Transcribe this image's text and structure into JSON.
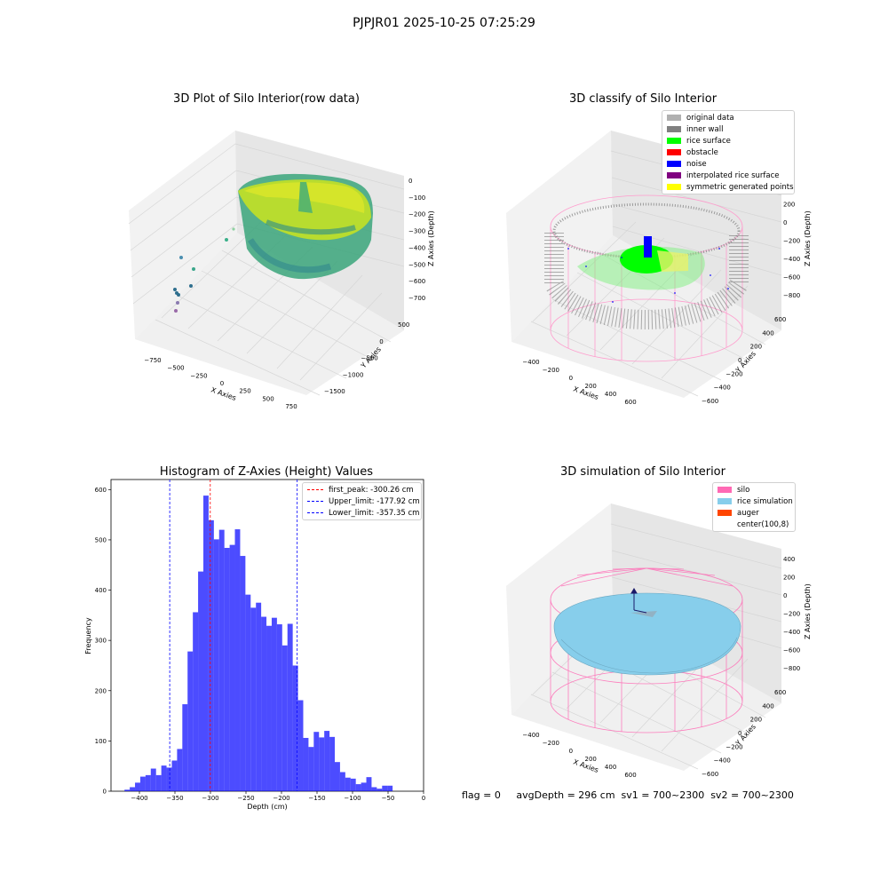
{
  "suptitle": "PJPJR01 2025-10-25 07:25:29",
  "panel1": {
    "title": "3D Plot of Silo Interior(row data)",
    "xlabel": "X Axies",
    "ylabel": "Y Axies",
    "zlabel": "Z Axies (Depth)",
    "xticks": [
      "−750",
      "−500",
      "−250",
      "0",
      "250",
      "500",
      "750"
    ],
    "yticks": [
      "500",
      "0",
      "−500",
      "−1000",
      "−1500"
    ],
    "zticks": [
      "0",
      "−100",
      "−200",
      "−300",
      "−400",
      "−500",
      "−600",
      "−700"
    ]
  },
  "panel2": {
    "title": "3D classify of Silo Interior",
    "xlabel": "X Axies",
    "ylabel": "Y Axies",
    "zlabel": "Z Axies (Depth)",
    "xticks": [
      "−400",
      "−200",
      "0",
      "200",
      "400",
      "600"
    ],
    "yticks": [
      "600",
      "400",
      "200",
      "0",
      "−200",
      "−400",
      "−600"
    ],
    "zticks": [
      "400",
      "200",
      "0",
      "−200",
      "−400",
      "−600",
      "−800"
    ],
    "legend": [
      {
        "label": "original data",
        "color": "#b0b0b0"
      },
      {
        "label": "inner wall",
        "color": "#808080"
      },
      {
        "label": "rice surface",
        "color": "#00ff00"
      },
      {
        "label": "obstacle",
        "color": "#ff0000"
      },
      {
        "label": "noise",
        "color": "#0000ff"
      },
      {
        "label": "interpolated rice surface",
        "color": "#800080"
      },
      {
        "label": "symmetric generated points",
        "color": "#ffff00"
      }
    ]
  },
  "panel4": {
    "title": "3D simulation of Silo Interior",
    "xlabel": "X Axies",
    "ylabel": "Y Axies",
    "zlabel": "Z Axies (Depth)",
    "xticks": [
      "−400",
      "−200",
      "0",
      "200",
      "400",
      "600"
    ],
    "yticks": [
      "600",
      "400",
      "200",
      "0",
      "−200",
      "−400",
      "−600"
    ],
    "zticks": [
      "400",
      "200",
      "0",
      "−200",
      "−400",
      "−600",
      "−800"
    ],
    "legend": [
      {
        "label": "silo",
        "color": "#ff69b4"
      },
      {
        "label": "rice simulation",
        "color": "#87ceeb"
      },
      {
        "label": "auger",
        "color": "#ff4500"
      },
      {
        "label": "center(100,8)",
        "color": "#ffffff"
      }
    ]
  },
  "chart_data": {
    "type": "bar",
    "title": "Histogram of Z-Axies (Height) Values",
    "xlabel": "Depth (cm)",
    "ylabel": "Frequency",
    "xlim": [
      -440,
      0
    ],
    "ylim": [
      0,
      620
    ],
    "xticks": [
      -400,
      -350,
      -300,
      -250,
      -200,
      -150,
      -100,
      -50,
      0
    ],
    "yticks": [
      0,
      100,
      200,
      300,
      400,
      500,
      600
    ],
    "bin_width": 7.4,
    "bin_start": -421,
    "values": [
      3,
      8,
      17,
      29,
      32,
      45,
      32,
      51,
      47,
      61,
      84,
      173,
      278,
      356,
      437,
      588,
      539,
      501,
      520,
      484,
      490,
      521,
      468,
      391,
      365,
      375,
      347,
      329,
      345,
      332,
      290,
      333,
      250,
      181,
      106,
      88,
      118,
      107,
      120,
      108,
      58,
      38,
      27,
      25,
      14,
      17,
      28,
      8,
      5,
      11,
      11
    ],
    "color": "#0000ff",
    "lines": [
      {
        "label": "first_peak: -300.26 cm",
        "x": -300.26,
        "color": "#ff0000"
      },
      {
        "label": "Upper_limit: -177.92 cm",
        "x": -177.92,
        "color": "#0000ff"
      },
      {
        "label": "Lower_limit: -357.35 cm",
        "x": -357.35,
        "color": "#0000ff"
      }
    ]
  },
  "footer": {
    "flag": "flag = 0",
    "stats": "avgDepth = 296 cm  sv1 = 700~2300  sv2 = 700~2300"
  }
}
